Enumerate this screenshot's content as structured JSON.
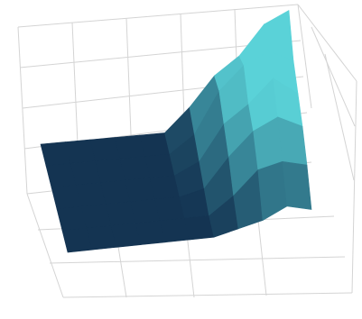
{
  "chart_data": {
    "type": "surface",
    "zlim": [
      0,
      1
    ],
    "colormap": [
      "#143452",
      "#5ad2d8"
    ],
    "z": [
      [
        0,
        0,
        0,
        0,
        0,
        0,
        0.2,
        0.45,
        0.6,
        0.85,
        0.95
      ],
      [
        0,
        0,
        0,
        0,
        0,
        0,
        0.15,
        0.5,
        0.7,
        0.8,
        0.7
      ],
      [
        0,
        0,
        0,
        0,
        0,
        0,
        0.1,
        0.4,
        0.55,
        0.75,
        0.6
      ],
      [
        0,
        0,
        0,
        0,
        0,
        0,
        0.05,
        0.3,
        0.5,
        0.6,
        0.5
      ],
      [
        0,
        0,
        0,
        0,
        0,
        0,
        0,
        0.15,
        0.35,
        0.4,
        0.35
      ],
      [
        0,
        0,
        0,
        0,
        0,
        0,
        0,
        0.05,
        0.1,
        0.2,
        0.15
      ]
    ]
  }
}
